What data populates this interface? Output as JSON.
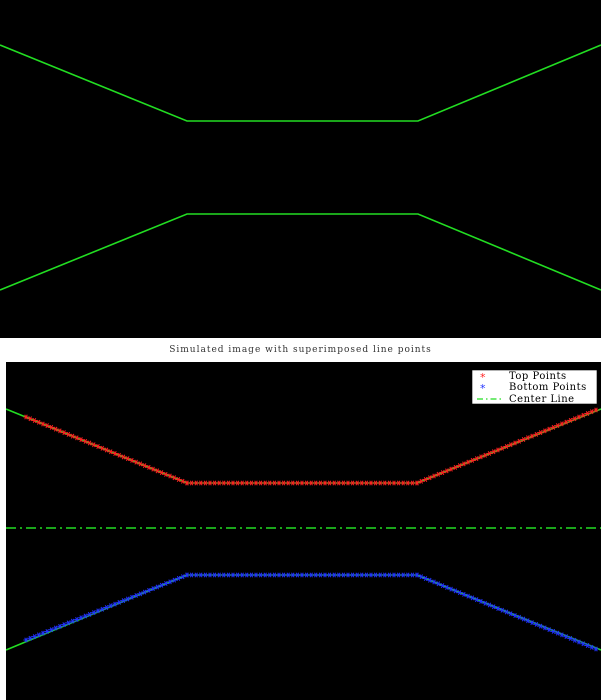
{
  "chart_data": [
    {
      "type": "line",
      "title": "",
      "xlabel": "",
      "ylabel": "",
      "background": "#000000",
      "series": [
        {
          "color": "#22dd22",
          "x": [
            0,
            187,
            418,
            601
          ],
          "y": [
            45,
            121,
            121,
            45
          ]
        },
        {
          "color": "#22dd22",
          "x": [
            0,
            187,
            418,
            601
          ],
          "y": [
            290,
            214,
            214,
            290
          ]
        }
      ],
      "xlim": [
        0,
        601
      ],
      "ylim": [
        338,
        0
      ],
      "grid": false
    },
    {
      "type": "scatter",
      "title": "Simulated image with superimposed line points",
      "xlabel": "",
      "ylabel": "",
      "background": "#000000",
      "xlim": [
        0,
        595
      ],
      "ylim": [
        338,
        0
      ],
      "grid": false,
      "legend_position": "top-right",
      "image_lines": {
        "color": "#22dd22",
        "top": {
          "x": [
            0,
            181,
            411,
            595
          ],
          "y": [
            47,
            121,
            121,
            47
          ]
        },
        "bottom": {
          "x": [
            0,
            181,
            411,
            595
          ],
          "y": [
            288,
            213,
            213,
            288
          ]
        }
      },
      "series": [
        {
          "name": "Top Points",
          "color": "#ff2222",
          "marker": "*",
          "segments": [
            {
              "x_start": 20,
              "x_end": 181,
              "y_start": 55,
              "y_end": 121
            },
            {
              "x_start": 181,
              "x_end": 411,
              "y_start": 121,
              "y_end": 121
            },
            {
              "x_start": 411,
              "x_end": 590,
              "y_start": 121,
              "y_end": 48
            }
          ]
        },
        {
          "name": "Bottom Points",
          "color": "#2233ff",
          "marker": "*",
          "segments": [
            {
              "x_start": 20,
              "x_end": 181,
              "y_start": 278,
              "y_end": 213
            },
            {
              "x_start": 181,
              "x_end": 411,
              "y_start": 213,
              "y_end": 213
            },
            {
              "x_start": 411,
              "x_end": 590,
              "y_start": 213,
              "y_end": 287
            }
          ]
        },
        {
          "name": "Center Line",
          "color": "#22dd22",
          "style": "dash-dot",
          "x": [
            0,
            595
          ],
          "y": [
            166,
            166
          ]
        }
      ]
    }
  ]
}
